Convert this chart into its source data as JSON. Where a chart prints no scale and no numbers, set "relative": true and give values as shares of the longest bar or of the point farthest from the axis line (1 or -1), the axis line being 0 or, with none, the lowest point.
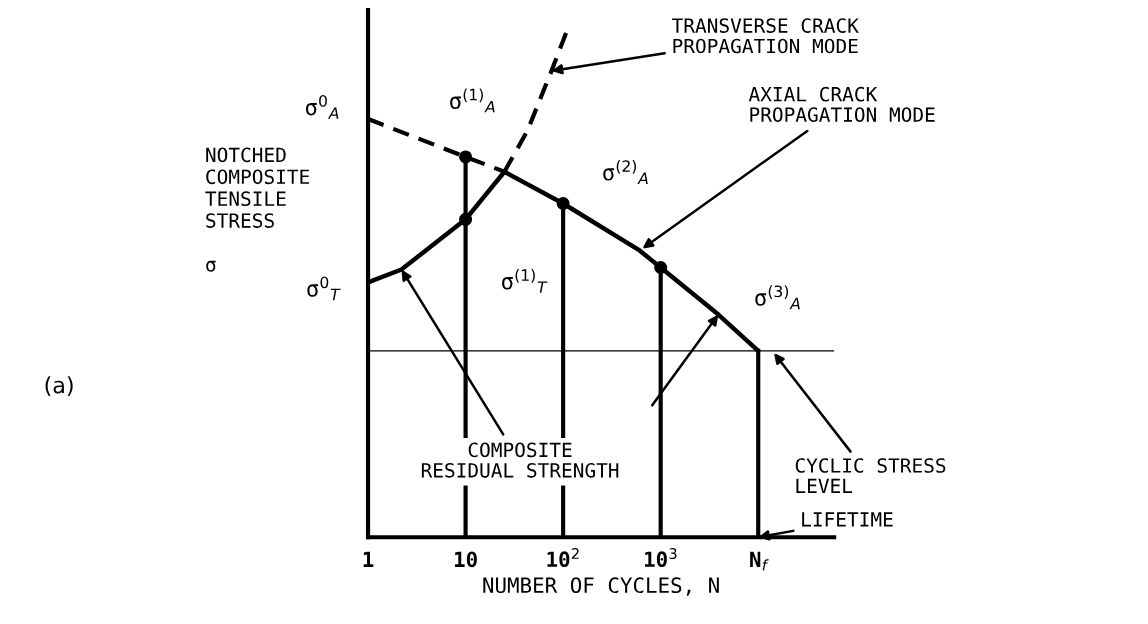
{
  "chart_data": {
    "type": "line",
    "relative": true,
    "xlabel": "NUMBER OF CYCLES, N",
    "ylabel": "NOTCHED\nCOMPOSITE\nTENSILE\nSTRESS\n\nσ",
    "log": "x",
    "xlim": [
      1,
      60000
    ],
    "xticks": [
      1,
      10,
      {
        "value": 100,
        "label": "10$^{2}$"
      },
      {
        "value": 1000,
        "label": "10$^{3}$"
      },
      {
        "value": 10000,
        "label": "N$_{f}$"
      }
    ],
    "grid": false,
    "tick_labels": "x",
    "series": [
      {
        "color": "#000000",
        "line_style": "dashed",
        "x": [
          1,
          10,
          25
        ],
        "values": [
          0.817,
          0.743,
          0.714
        ]
      },
      {
        "color": "#000000",
        "line_style": "solid",
        "x": [
          25,
          100,
          590,
          1000,
          3900,
          10000
        ],
        "values": [
          0.714,
          0.652,
          0.562,
          0.527,
          0.435,
          0.364
        ]
      },
      {
        "color": "#000000",
        "line_style": "solid",
        "x": [
          1,
          2.2,
          10,
          25
        ],
        "values": [
          0.498,
          0.523,
          0.621,
          0.714
        ]
      },
      {
        "color": "#000000",
        "line_style": "dashed",
        "x": [
          25,
          43,
          76,
          115
        ],
        "values": [
          0.714,
          0.794,
          0.911,
          1.0
        ]
      },
      {
        "type": "scatter",
        "marker": "circle",
        "color": "#000000",
        "x": [
          10,
          10,
          100,
          1000
        ],
        "values": [
          0.743,
          0.621,
          0.652,
          0.527
        ]
      }
    ],
    "ref_lines": [
      {
        "axis": "y",
        "value": 0.364,
        "color": "#000000"
      },
      {
        "axis": "x",
        "value": 10,
        "color": "#000000"
      },
      {
        "axis": "x",
        "value": 100,
        "color": "#000000"
      },
      {
        "axis": "x",
        "value": 1000,
        "color": "#000000"
      },
      {
        "axis": "x",
        "value": 10000,
        "color": "#000000"
      }
    ],
    "annotations": [
      {
        "text": "σ$^{0}$$_{A}$",
        "x": 1,
        "y": 0.817
      },
      {
        "text": "σ$^{0}$$_{T}$",
        "x": 1,
        "y": 0.498
      },
      {
        "text": "σ$^{(1)}$$_{A}$",
        "x": 10,
        "y": 0.743
      },
      {
        "text": "σ$^{(1)}$$_{T}$",
        "x": 10,
        "y": 0.621
      },
      {
        "text": "σ$^{(2)}$$_{A}$",
        "x": 100,
        "y": 0.652
      },
      {
        "text": "σ$^{(3)}$$_{A}$",
        "x": 10000,
        "y": 0.364
      },
      {
        "text": "TRANSVERSE CRACK\nPROPAGATION MODE",
        "x": 76,
        "y": 0.911
      },
      {
        "text": "AXIAL CRACK\nPROPAGATION MODE",
        "x": 650,
        "y": 0.564
      },
      {
        "text": "CYCLIC STRESS\nLEVEL",
        "x": 14500,
        "y": 0.36
      },
      {
        "text": "LIFETIME",
        "x": 10000,
        "y": 0
      },
      {
        "text": "COMPOSITE\nRESIDUAL STRENGTH",
        "x": 2.2,
        "y": 0.523
      },
      "(a)"
    ]
  }
}
